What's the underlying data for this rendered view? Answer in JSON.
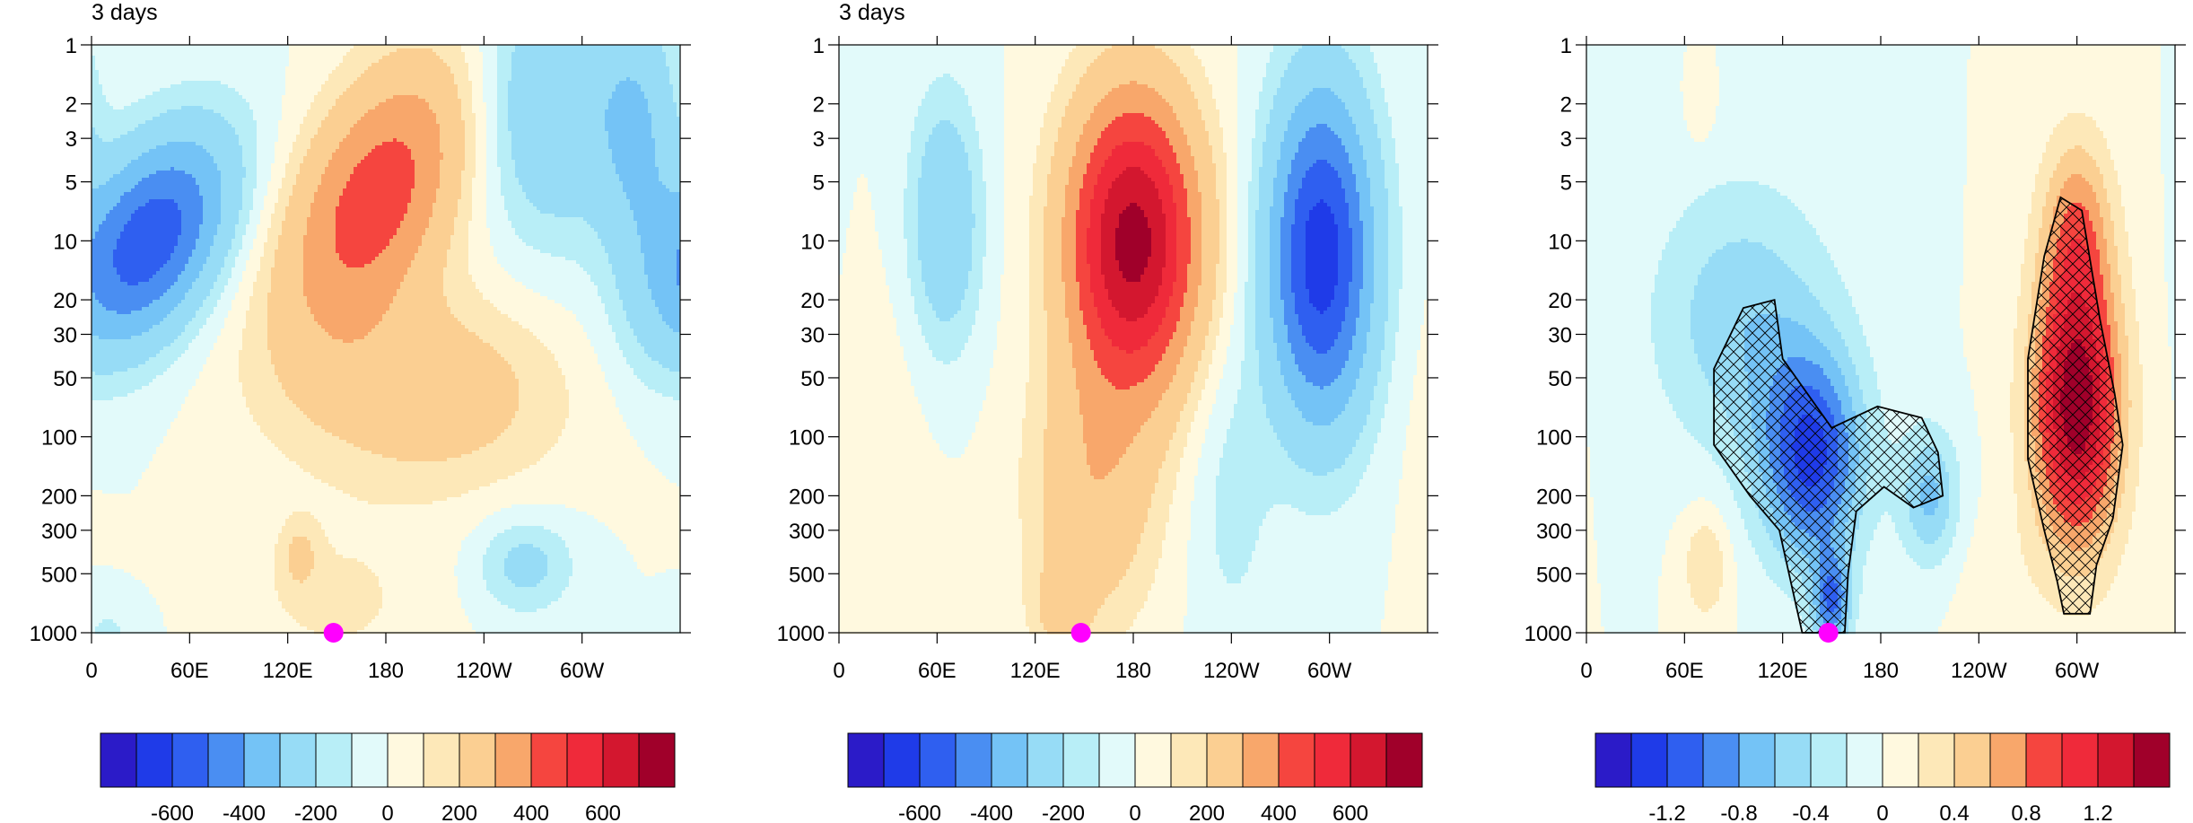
{
  "palette": [
    "#2b1bc8",
    "#1f3be8",
    "#2f5ff0",
    "#4a8ef2",
    "#74c3f6",
    "#97dcf6",
    "#b8eef7",
    "#e2fafa",
    "#fff9df",
    "#fde8b8",
    "#fbcf92",
    "#f8a76b",
    "#f5453f",
    "#ef2a3a",
    "#d3172f",
    "#a0002a"
  ],
  "highlight_color": "#ff00ff",
  "chart_data": [
    {
      "type": "contour",
      "title": "3 days",
      "xlabel": "",
      "ylabel": "",
      "x_ticks": [
        "0",
        "60E",
        "120E",
        "180",
        "120W",
        "60W"
      ],
      "y_ticks": [
        "1",
        "2",
        "3",
        "5",
        "10",
        "20",
        "30",
        "50",
        "100",
        "200",
        "300",
        "500",
        "1000"
      ],
      "x_range": [
        0,
        360
      ],
      "y_range": [
        1,
        1000
      ],
      "y_scale": "log",
      "y_reversed": true,
      "grid": false,
      "marker": {
        "x": 148,
        "y": 1000
      },
      "colorbar_labels": [
        "-600",
        "-400",
        "-200",
        "0",
        "200",
        "400",
        "600"
      ],
      "features": [
        {
          "x": 50,
          "y": 10,
          "value": -450
        },
        {
          "x": 190,
          "y": 6,
          "value": 350
        },
        {
          "x": 270,
          "y": 5,
          "value": -150
        },
        {
          "x": 125,
          "y": 400,
          "value": 100
        },
        {
          "x": 265,
          "y": 400,
          "value": -120
        }
      ]
    },
    {
      "type": "contour",
      "title": "3 days",
      "xlabel": "",
      "ylabel": "",
      "x_ticks": [
        "0",
        "60E",
        "120E",
        "180",
        "120W",
        "60W"
      ],
      "y_ticks": [
        "1",
        "2",
        "3",
        "5",
        "10",
        "20",
        "30",
        "50",
        "100",
        "200",
        "300",
        "500",
        "1000"
      ],
      "x_range": [
        0,
        360
      ],
      "y_range": [
        1,
        1000
      ],
      "y_scale": "log",
      "y_reversed": true,
      "grid": false,
      "marker": {
        "x": 148,
        "y": 1000
      },
      "colorbar_labels": [
        "-600",
        "-400",
        "-200",
        "0",
        "200",
        "400",
        "600"
      ],
      "features": [
        {
          "x": 65,
          "y": 10,
          "value": -200
        },
        {
          "x": 180,
          "y": 10,
          "value": 600
        },
        {
          "x": 295,
          "y": 15,
          "value": -550
        },
        {
          "x": 140,
          "y": 400,
          "value": 120
        }
      ]
    },
    {
      "type": "contour",
      "title": "",
      "xlabel": "",
      "ylabel": "",
      "x_ticks": [
        "0",
        "60E",
        "120E",
        "180",
        "120W",
        "60W"
      ],
      "y_ticks": [
        "1",
        "2",
        "3",
        "5",
        "10",
        "20",
        "30",
        "50",
        "100",
        "200",
        "300",
        "500",
        "1000"
      ],
      "x_range": [
        0,
        360
      ],
      "y_range": [
        1,
        1000
      ],
      "y_scale": "log",
      "y_reversed": true,
      "grid": false,
      "marker": {
        "x": 148,
        "y": 1000
      },
      "colorbar_labels": [
        "-1.2",
        "-0.8",
        "-0.4",
        "0",
        "0.4",
        "0.8",
        "1.2"
      ],
      "features": [
        {
          "x": 135,
          "y": 150,
          "value": -1.1
        },
        {
          "x": 300,
          "y": 80,
          "value": 1.5
        },
        {
          "x": 70,
          "y": 500,
          "value": 0.3
        },
        {
          "x": 210,
          "y": 250,
          "value": -0.6
        }
      ]
    }
  ]
}
